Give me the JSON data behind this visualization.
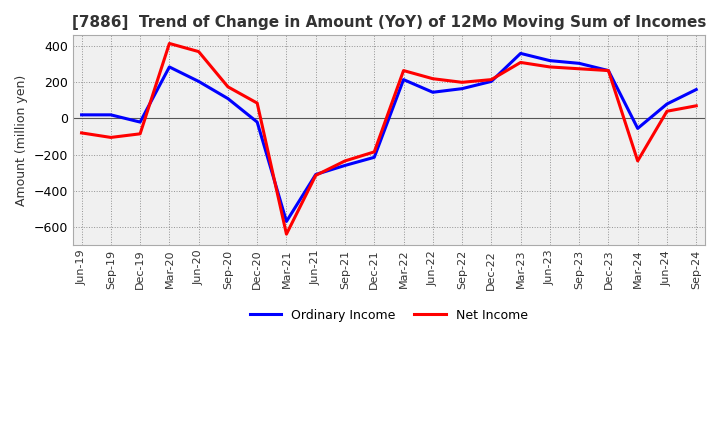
{
  "title": "[7886]  Trend of Change in Amount (YoY) of 12Mo Moving Sum of Incomes",
  "ylabel": "Amount (million yen)",
  "ylim": [
    -700,
    460
  ],
  "yticks": [
    -600,
    -400,
    -200,
    0,
    200,
    400
  ],
  "background_color": "#ffffff",
  "plot_bg_color": "#f0f0f0",
  "grid_color": "#888888",
  "ordinary_income_color": "#0000ff",
  "net_income_color": "#ff0000",
  "x_labels": [
    "Jun-19",
    "Sep-19",
    "Dec-19",
    "Mar-20",
    "Jun-20",
    "Sep-20",
    "Dec-20",
    "Mar-21",
    "Jun-21",
    "Sep-21",
    "Dec-21",
    "Mar-22",
    "Jun-22",
    "Sep-22",
    "Dec-22",
    "Mar-23",
    "Jun-23",
    "Sep-23",
    "Dec-23",
    "Mar-24",
    "Jun-24",
    "Sep-24"
  ],
  "ordinary_income": [
    20,
    20,
    -20,
    285,
    205,
    110,
    -20,
    -570,
    -310,
    -260,
    -215,
    215,
    145,
    165,
    205,
    360,
    320,
    305,
    265,
    -55,
    80,
    160
  ],
  "net_income": [
    -80,
    -105,
    -85,
    415,
    370,
    175,
    85,
    -640,
    -315,
    -235,
    -185,
    265,
    220,
    200,
    215,
    310,
    285,
    275,
    265,
    -235,
    40,
    70
  ]
}
